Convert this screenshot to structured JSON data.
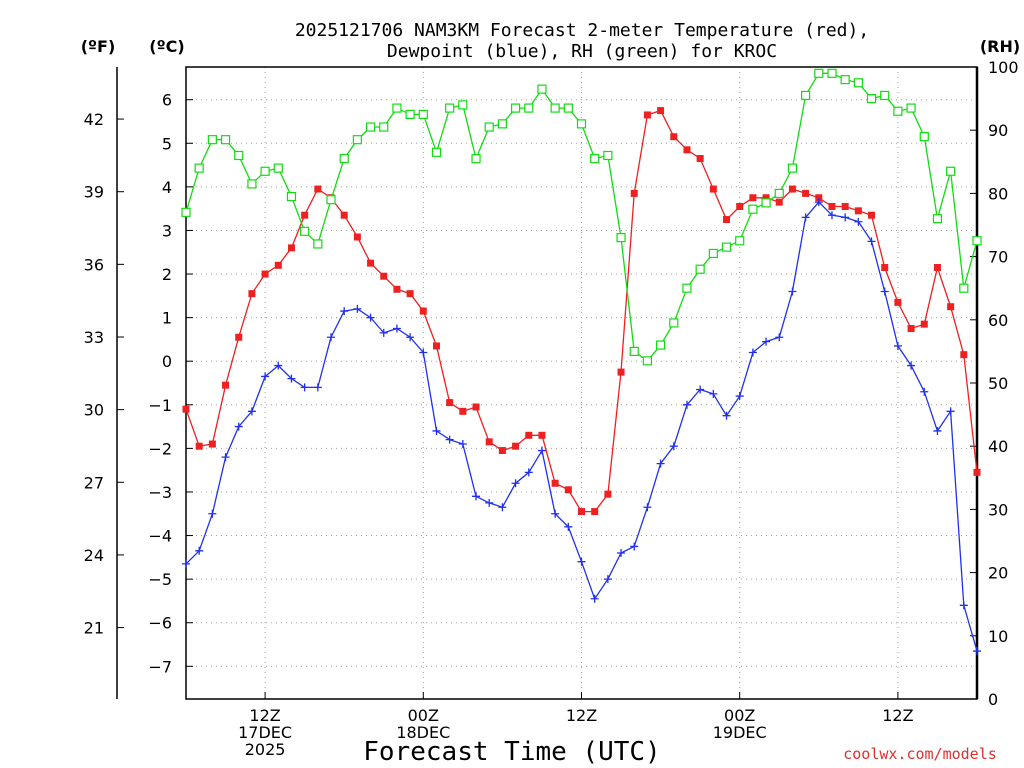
{
  "chart_data": {
    "type": "line",
    "title_lines": [
      "2025121706 NAM3KM Forecast 2-meter Temperature (red),",
      "Dewpoint (blue), RH (green) for KROC"
    ],
    "xlabel": "Forecast Time (UTC)",
    "watermark": "coolwx.com/models",
    "left_outer_unit": "(ºF)",
    "left_inner_unit": "(ºC)",
    "right_unit": "(RH)",
    "x_range": [
      0,
      60
    ],
    "y_celsius_range": [
      -7.75,
      6.75
    ],
    "y_rh_range": [
      0,
      100
    ],
    "celsius_ticks": [
      -7,
      -6,
      -5,
      -4,
      -3,
      -2,
      -1,
      0,
      1,
      2,
      3,
      4,
      5,
      6
    ],
    "celsius_tick_labels": [
      "−7",
      "−6",
      "−5",
      "−4",
      "−3",
      "−2",
      "−1",
      "0",
      "1",
      "2",
      "3",
      "4",
      "5",
      "6"
    ],
    "fahrenheit_ticks": [
      21,
      24,
      27,
      30,
      33,
      36,
      39,
      42
    ],
    "fahrenheit_tick_labels": [
      "21",
      "24",
      "27",
      "30",
      "33",
      "36",
      "39",
      "42"
    ],
    "rh_ticks": [
      0,
      10,
      20,
      30,
      40,
      50,
      60,
      70,
      80,
      90,
      100
    ],
    "rh_tick_labels": [
      "0",
      "10",
      "20",
      "30",
      "40",
      "50",
      "60",
      "70",
      "80",
      "90",
      "100"
    ],
    "x_ticks": [
      {
        "hour": 6,
        "lines": [
          "12Z",
          "17DEC",
          "2025"
        ]
      },
      {
        "hour": 18,
        "lines": [
          "00Z",
          "18DEC"
        ]
      },
      {
        "hour": 30,
        "lines": [
          "12Z",
          ""
        ]
      },
      {
        "hour": 42,
        "lines": [
          "00Z",
          "19DEC"
        ]
      },
      {
        "hour": 54,
        "lines": [
          "12Z",
          ""
        ]
      }
    ],
    "hours": [
      0,
      1,
      2,
      3,
      4,
      5,
      6,
      7,
      8,
      9,
      10,
      11,
      12,
      13,
      14,
      15,
      16,
      17,
      18,
      19,
      20,
      21,
      22,
      23,
      24,
      25,
      26,
      27,
      28,
      29,
      30,
      31,
      32,
      33,
      34,
      35,
      36,
      37,
      38,
      39,
      40,
      41,
      42,
      43,
      44,
      45,
      46,
      47,
      48,
      49,
      50,
      51,
      52,
      53,
      54,
      55,
      56,
      57,
      58,
      59,
      60
    ],
    "series": [
      {
        "name": "2-meter Temperature",
        "unit": "C",
        "color": "#ee2020",
        "marker": "filled-square",
        "axis": "left",
        "values": [
          -1.1,
          -1.95,
          -1.9,
          -0.55,
          0.55,
          1.55,
          2.0,
          2.2,
          2.6,
          3.35,
          3.95,
          3.75,
          3.35,
          2.85,
          2.25,
          1.95,
          1.65,
          1.55,
          1.15,
          0.35,
          -0.95,
          -1.15,
          -1.05,
          -1.85,
          -2.05,
          -1.95,
          -1.7,
          -1.7,
          -2.8,
          -2.95,
          -3.45,
          -3.45,
          -3.05,
          -0.25,
          3.85,
          5.65,
          5.75,
          5.15,
          4.85,
          4.65,
          3.95,
          3.25,
          3.55,
          3.75,
          3.75,
          3.65,
          3.95,
          3.85,
          3.75,
          3.55,
          3.55,
          3.45,
          3.35,
          2.15,
          1.35,
          0.75,
          0.85,
          2.15,
          1.25,
          0.15,
          -2.55
        ]
      },
      {
        "name": "Dewpoint",
        "unit": "C",
        "color": "#2030ee",
        "marker": "plus",
        "axis": "left",
        "values": [
          -4.65,
          -4.35,
          -3.5,
          -2.2,
          -1.5,
          -1.15,
          -0.35,
          -0.1,
          -0.4,
          -0.6,
          -0.6,
          0.55,
          1.15,
          1.2,
          1.0,
          0.65,
          0.75,
          0.55,
          0.2,
          -1.6,
          -1.8,
          -1.9,
          -3.1,
          -3.25,
          -3.35,
          -2.8,
          -2.55,
          -2.05,
          -3.5,
          -3.8,
          -4.6,
          -5.45,
          -5.0,
          -4.4,
          -4.25,
          -3.35,
          -2.35,
          -1.95,
          -1.0,
          -0.65,
          -0.75,
          -1.25,
          -0.8,
          0.2,
          0.45,
          0.55,
          1.6,
          3.3,
          3.65,
          3.35,
          3.3,
          3.2,
          2.75,
          1.6,
          0.35,
          -0.1,
          -0.7,
          -1.6,
          -1.15,
          -5.6,
          -6.65
        ]
      },
      {
        "name": "RH",
        "unit": "%",
        "color": "#10dd10",
        "marker": "open-square",
        "axis": "right",
        "values": [
          77,
          84,
          88.5,
          88.5,
          86,
          81.5,
          83.5,
          84,
          79.5,
          74,
          72,
          79,
          85.5,
          88.5,
          90.5,
          90.5,
          93.5,
          92.5,
          92.5,
          86.5,
          93.5,
          94,
          85.5,
          90.5,
          91,
          93.5,
          93.5,
          96.5,
          93.5,
          93.5,
          91,
          85.5,
          86,
          73,
          55,
          53.5,
          56,
          59.5,
          65,
          68,
          70.5,
          71.5,
          72.5,
          77.5,
          78.5,
          80,
          84,
          95.5,
          99,
          99,
          98,
          97.5,
          95,
          95.5,
          93,
          93.5,
          89,
          76,
          83.5,
          65,
          72.5
        ]
      }
    ]
  }
}
